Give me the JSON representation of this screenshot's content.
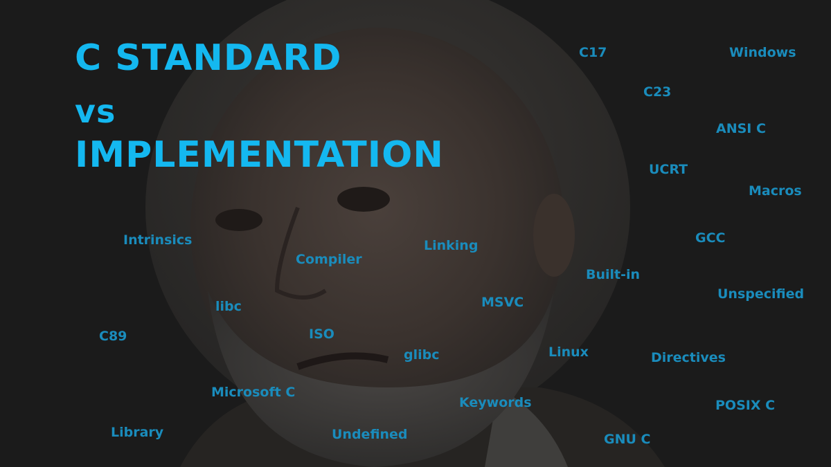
{
  "title": {
    "line1": "C STANDARD",
    "line2": "vs",
    "line3": "IMPLEMENTATION"
  },
  "keywords": {
    "c17": "C17",
    "windows": "Windows",
    "c23": "C23",
    "ansi_c": "ANSI C",
    "ucrt": "UCRT",
    "macros": "Macros",
    "intrinsics": "Intrinsics",
    "linking": "Linking",
    "gcc": "GCC",
    "compiler": "Compiler",
    "built_in": "Built-in",
    "unspecified": "Unspecified",
    "libc": "libc",
    "msvc": "MSVC",
    "c89": "C89",
    "iso": "ISO",
    "glibc": "glibc",
    "linux": "Linux",
    "directives": "Directives",
    "microsoft_c": "Microsoft C",
    "keywords": "Keywords",
    "posix_c": "POSIX C",
    "library": "Library",
    "undefined": "Undefined",
    "gnu_c": "GNU C"
  },
  "colors": {
    "background": "#1b1b1b",
    "title": "#14b8f0",
    "keyword": "#1a8cbc"
  }
}
